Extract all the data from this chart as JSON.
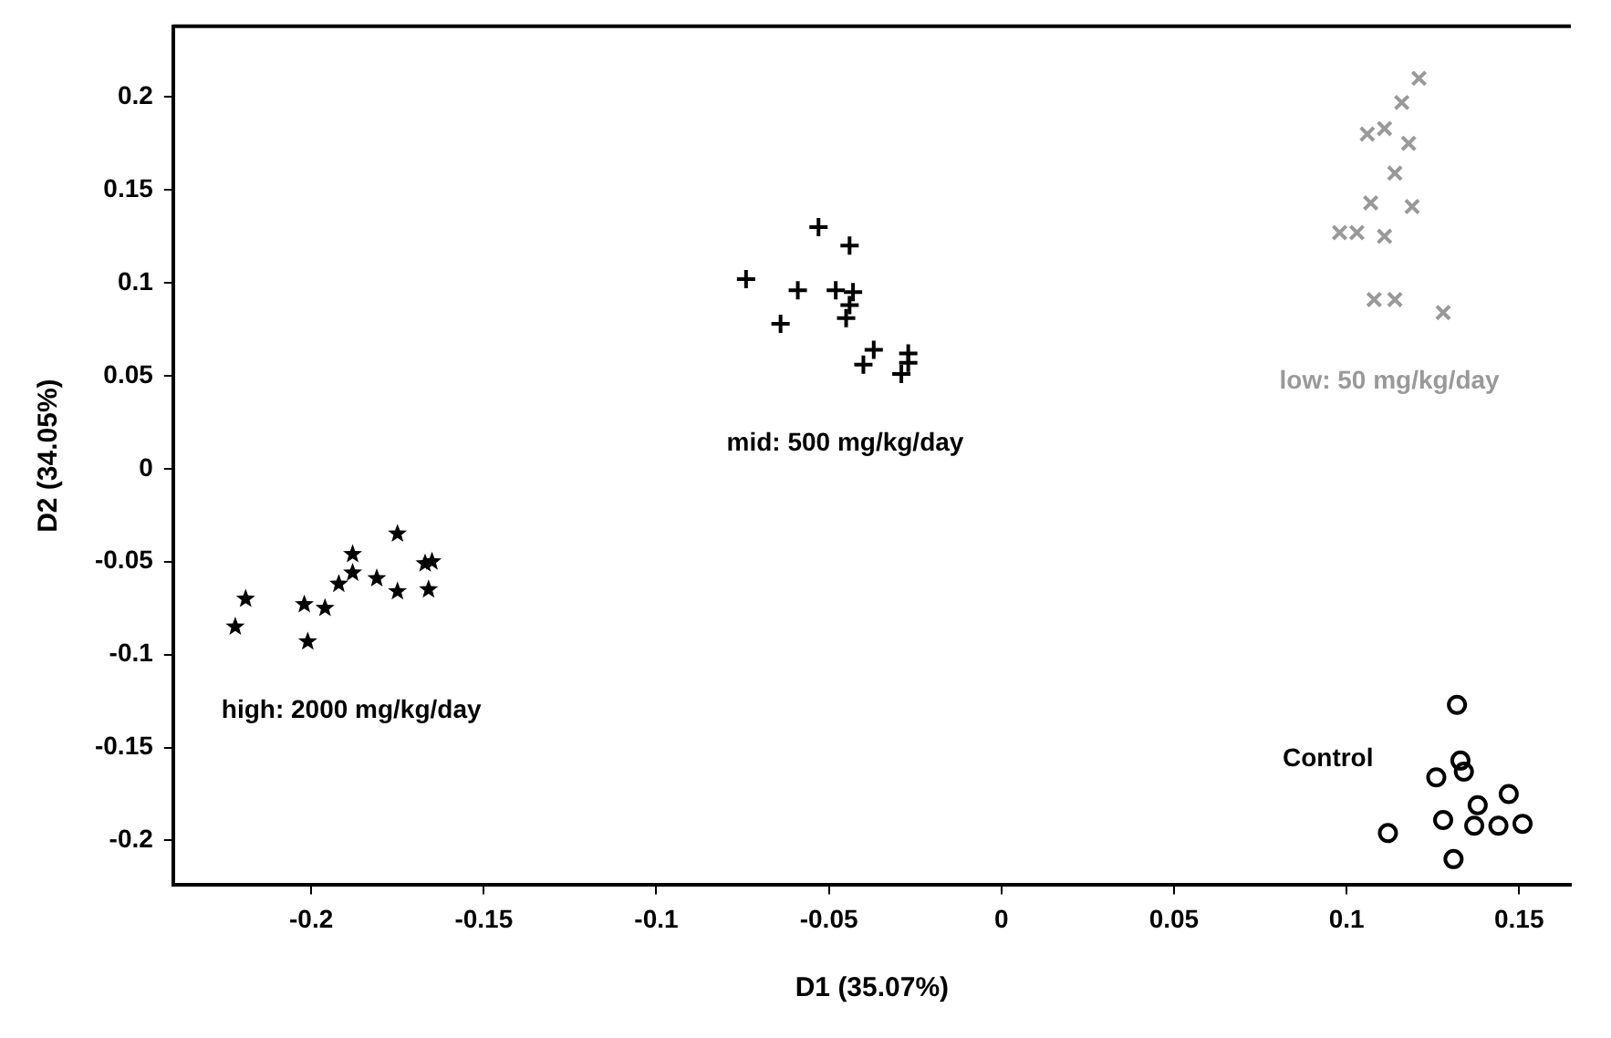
{
  "chart_data": {
    "type": "scatter",
    "xlabel": "D1 (35.07%)",
    "ylabel": "D2 (34.05%)",
    "xlim": [
      -0.24,
      0.165
    ],
    "ylim": [
      -0.224,
      0.238
    ],
    "xticks": [
      -0.2,
      -0.15,
      -0.1,
      -0.05,
      0,
      0.05,
      0.1,
      0.15
    ],
    "yticks": [
      -0.2,
      -0.15,
      -0.1,
      -0.05,
      0,
      0.05,
      0.1,
      0.15,
      0.2
    ],
    "grid": false,
    "legend": false,
    "series": [
      {
        "name": "high: 2000 mg/kg/day",
        "color": "#000000",
        "marker": "star",
        "x": [
          -0.219,
          -0.222,
          -0.202,
          -0.201,
          -0.196,
          -0.192,
          -0.188,
          -0.188,
          -0.181,
          -0.175,
          -0.175,
          -0.167,
          -0.165,
          -0.166
        ],
        "values": [
          -0.07,
          -0.085,
          -0.073,
          -0.093,
          -0.075,
          -0.062,
          -0.056,
          -0.046,
          -0.059,
          -0.066,
          -0.035,
          -0.051,
          -0.05,
          -0.065
        ]
      },
      {
        "name": "mid: 500 mg/kg/day",
        "color": "#000000",
        "marker": "cross",
        "x": [
          -0.053,
          -0.044,
          -0.059,
          -0.064,
          -0.048,
          -0.043,
          -0.044,
          -0.045,
          -0.037,
          -0.04,
          -0.027,
          -0.027,
          -0.029,
          -0.074
        ],
        "values": [
          0.13,
          0.12,
          0.096,
          0.078,
          0.096,
          0.095,
          0.088,
          0.081,
          0.064,
          0.056,
          0.062,
          0.057,
          0.051,
          0.102
        ]
      },
      {
        "name": "low: 50 mg/kg/day",
        "color": "#999999",
        "marker": "x",
        "x": [
          0.121,
          0.116,
          0.106,
          0.111,
          0.118,
          0.114,
          0.107,
          0.119,
          0.098,
          0.103,
          0.111,
          0.114,
          0.108,
          0.128
        ],
        "values": [
          0.21,
          0.197,
          0.18,
          0.183,
          0.175,
          0.159,
          0.143,
          0.141,
          0.127,
          0.127,
          0.125,
          0.091,
          0.091,
          0.084
        ]
      },
      {
        "name": "Control",
        "color": "#000000",
        "marker": "circle",
        "x": [
          0.132,
          0.133,
          0.134,
          0.126,
          0.147,
          0.138,
          0.128,
          0.137,
          0.144,
          0.151,
          0.112,
          0.131
        ],
        "values": [
          -0.127,
          -0.157,
          -0.163,
          -0.166,
          -0.175,
          -0.181,
          -0.189,
          -0.192,
          -0.192,
          -0.191,
          -0.196,
          -0.21
        ]
      }
    ]
  }
}
